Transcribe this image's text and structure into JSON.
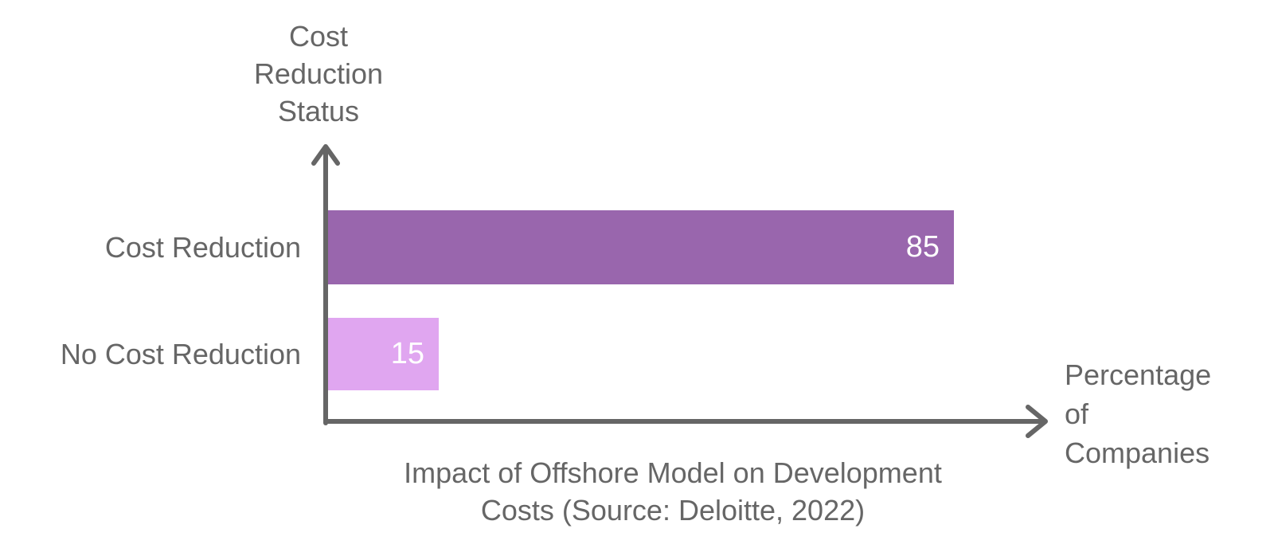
{
  "labels": {
    "title_line1": "Impact of Offshore Model on Development",
    "title_line2": "Costs (Source: Deloitte, 2022)"
  },
  "chart_data": {
    "type": "bar",
    "orientation": "horizontal",
    "title": "Impact of Offshore Model on Development Costs (Source: Deloitte, 2022)",
    "xlabel": "Percentage of Companies",
    "ylabel": "Cost Reduction Status",
    "categories": [
      "Cost Reduction",
      "No Cost Reduction"
    ],
    "values": [
      85,
      15
    ],
    "value_labels": [
      "85",
      "15"
    ],
    "bar_colors": [
      "#9966ad",
      "#e0a6f0"
    ],
    "value_label_color": "#ffffff",
    "text_color": "#666666",
    "axis_color": "#666666",
    "xlim": [
      0,
      97
    ],
    "grid": false,
    "legend": false
  }
}
